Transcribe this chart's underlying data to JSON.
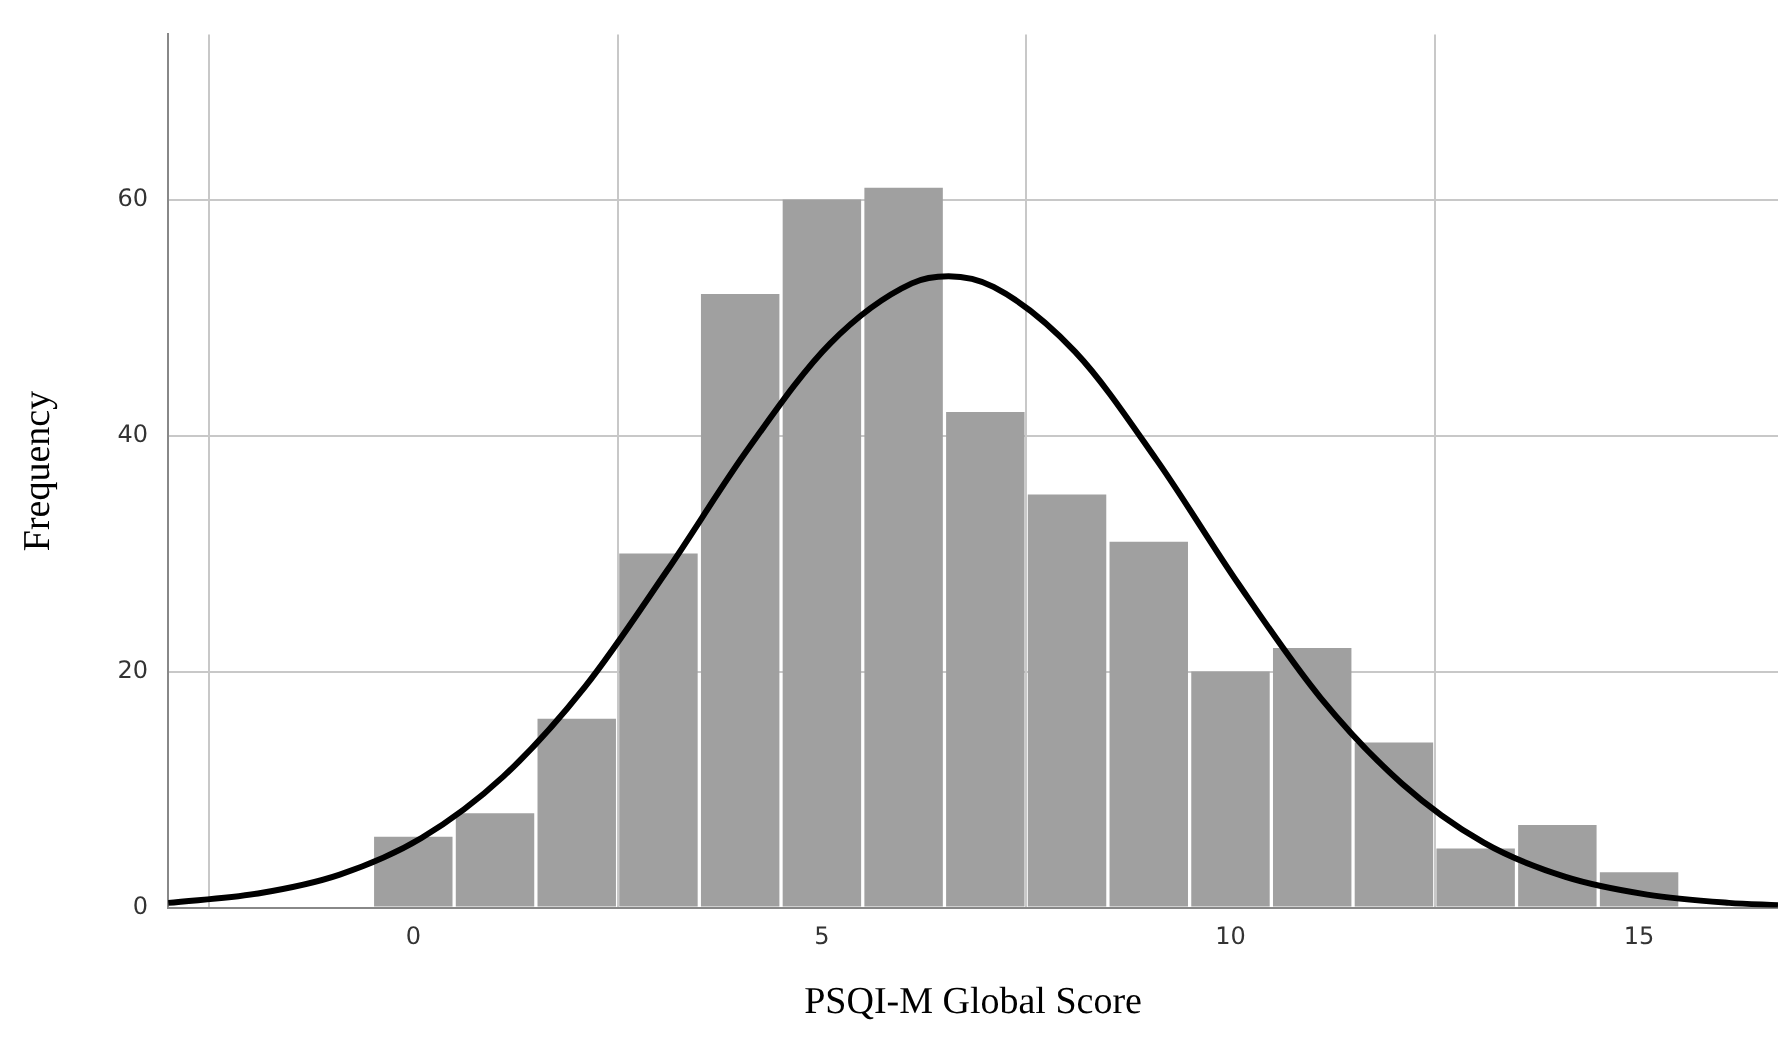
{
  "chart_data": {
    "type": "histogram",
    "xlabel": "PSQI-M Global Score",
    "ylabel": "Frequency",
    "bins": [
      -0.5,
      0.5,
      1.5,
      2.5,
      3.5,
      4.5,
      5.5,
      6.5,
      7.5,
      8.5,
      9.5,
      10.5,
      11.5,
      12.5,
      13.5,
      14.5,
      15.5
    ],
    "values": [
      6,
      8,
      16,
      30,
      52,
      60,
      61,
      42,
      35,
      31,
      20,
      22,
      14,
      5,
      7,
      3
    ],
    "color": "#a0a0a0",
    "series": [
      {
        "type": "line",
        "color": "#000000",
        "x": [
          -3,
          -1.9,
          -0.9,
          0.1,
          1.1,
          2.1,
          3.1,
          4.1,
          5.1,
          6.1,
          6.55,
          7.1,
          8.1,
          9.1,
          10.1,
          11.1,
          12.1,
          13.1,
          14.1,
          15.1,
          16.1,
          16.7
        ],
        "values": [
          0.4,
          1.2,
          2.8,
          5.9,
          11.1,
          18.7,
          28.5,
          38.9,
          47.8,
          52.9,
          53.5,
          52.6,
          47.1,
          37.9,
          27.4,
          17.8,
          10.5,
          5.5,
          2.6,
          1.1,
          0.4,
          0.2
        ]
      }
    ],
    "xlim": [
      -3,
      16.7
    ],
    "xticks": [
      0,
      5,
      10,
      15
    ],
    "ylim": [
      0,
      74
    ],
    "yticks": [
      0,
      20,
      40,
      60
    ],
    "grid": true,
    "legend": false,
    "marker": "none",
    "line_style": "solid"
  }
}
